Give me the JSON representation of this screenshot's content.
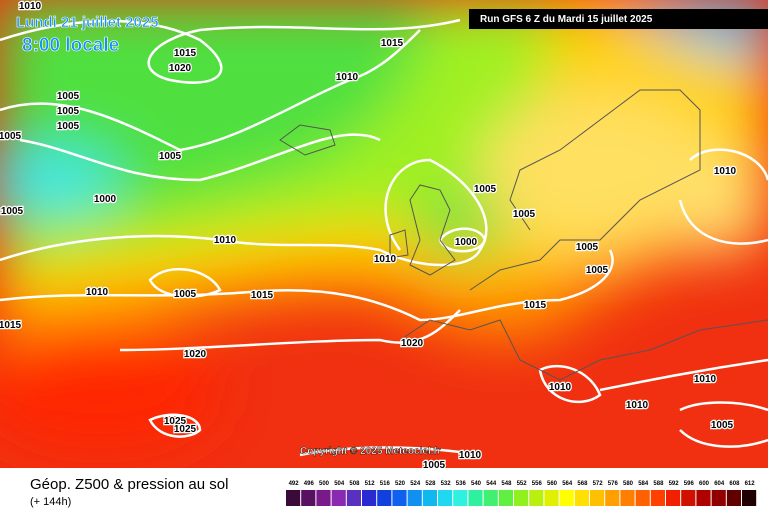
{
  "header": {
    "date": "Lundi 21 juillet 2025",
    "time": "8:00 locale",
    "run": "Run GFS 6 Z du Mardi 15 juillet 2025"
  },
  "copyright": "Copyright © 2025 Meteociel.fr",
  "footer": {
    "title": "Géop. Z500 & pression au sol",
    "subtitle": "(+ 144h)"
  },
  "isobar_labels": [
    "1010",
    "1015",
    "1020",
    "1005",
    "1005",
    "1005",
    "1005",
    "1005",
    "1000",
    "1005",
    "1015",
    "1010",
    "1005",
    "1005",
    "1000",
    "1010",
    "1010",
    "1005",
    "1005",
    "1010",
    "1005",
    "1015",
    "1015",
    "1015",
    "1020",
    "1020",
    "1010",
    "1010",
    "1010",
    "1010",
    "1025",
    "1025",
    "1005",
    "1010",
    "1005"
  ],
  "scale": {
    "labels": [
      "492",
      "496",
      "500",
      "504",
      "508",
      "512",
      "516",
      "520",
      "524",
      "528",
      "532",
      "536",
      "540",
      "544",
      "548",
      "552",
      "556",
      "560",
      "564",
      "568",
      "572",
      "576",
      "580",
      "584",
      "588",
      "592",
      "596",
      "600",
      "604",
      "608",
      "612"
    ],
    "colors": [
      "#3a0a3a",
      "#5a1060",
      "#7a1a8a",
      "#8a2ab0",
      "#5a30c0",
      "#2a2ad0",
      "#1040e0",
      "#1060f0",
      "#1090f0",
      "#10b8f0",
      "#20d8f0",
      "#30f0e0",
      "#30f0a0",
      "#40f070",
      "#60f040",
      "#90f020",
      "#b8f010",
      "#e0f000",
      "#ffff00",
      "#ffe000",
      "#ffc000",
      "#ffa000",
      "#ff8000",
      "#ff6000",
      "#ff4000",
      "#f02000",
      "#d01000",
      "#b00000",
      "#900000",
      "#600000",
      "#200000"
    ]
  }
}
